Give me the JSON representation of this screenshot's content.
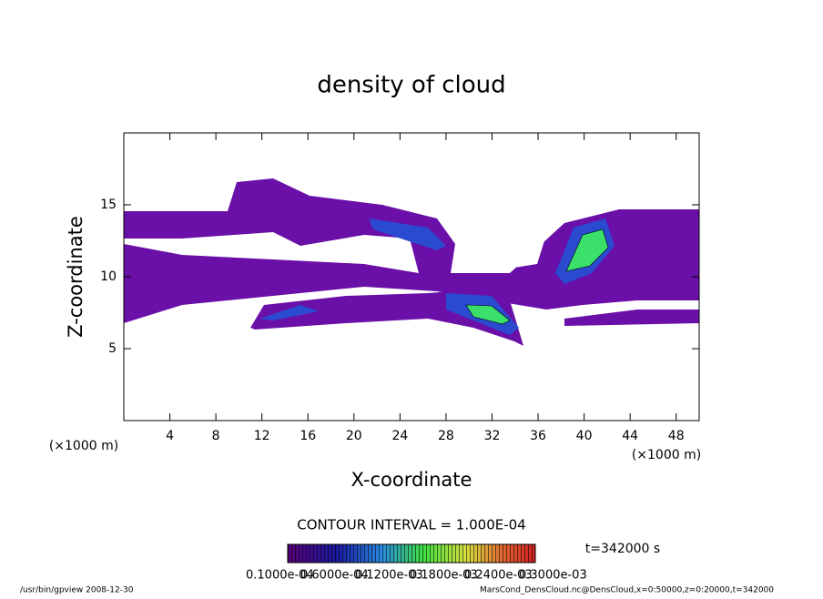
{
  "chart_data": {
    "type": "contour",
    "title": "density of cloud",
    "x_label": "X-coordinate",
    "y_label": "Z-coordinate",
    "x_unit": "(×1000 m)",
    "y_unit": "(×1000 m)",
    "xlim": [
      0,
      50
    ],
    "xticks": [
      4,
      8,
      12,
      16,
      20,
      24,
      28,
      32,
      36,
      40,
      44,
      48
    ],
    "ylim": [
      0,
      20
    ],
    "yticks": [
      5,
      10,
      15
    ],
    "contour_note": "CONTOUR INTERVAL = 1.000E-04",
    "time_label": "t=342000 s",
    "colorbar_labels": [
      "0.1000e-04",
      "0.6000e-04",
      "0.1200e-03",
      "0.1800e-03",
      "0.2400e-03",
      "0.3000e-03"
    ],
    "footer_left": "/usr/bin/gpview  2008-12-30",
    "footer_right": "MarsCond_DensCloud.nc@DensCloud,x=0:50000,z=0:20000,t=342000"
  }
}
